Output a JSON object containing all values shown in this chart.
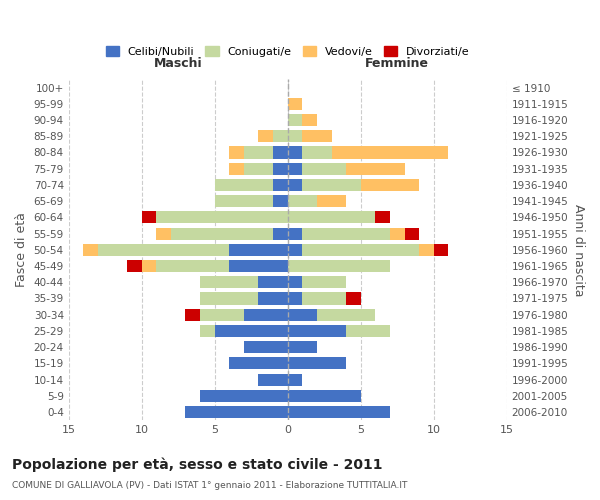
{
  "age_groups": [
    "0-4",
    "5-9",
    "10-14",
    "15-19",
    "20-24",
    "25-29",
    "30-34",
    "35-39",
    "40-44",
    "45-49",
    "50-54",
    "55-59",
    "60-64",
    "65-69",
    "70-74",
    "75-79",
    "80-84",
    "85-89",
    "90-94",
    "95-99",
    "100+"
  ],
  "birth_years": [
    "2006-2010",
    "2001-2005",
    "1996-2000",
    "1991-1995",
    "1986-1990",
    "1981-1985",
    "1976-1980",
    "1971-1975",
    "1966-1970",
    "1961-1965",
    "1956-1960",
    "1951-1955",
    "1946-1950",
    "1941-1945",
    "1936-1940",
    "1931-1935",
    "1926-1930",
    "1921-1925",
    "1916-1920",
    "1911-1915",
    "≤ 1910"
  ],
  "maschi": {
    "celibi": [
      7,
      6,
      2,
      4,
      3,
      5,
      3,
      2,
      2,
      4,
      4,
      1,
      0,
      1,
      1,
      1,
      1,
      0,
      0,
      0,
      0
    ],
    "coniugati": [
      0,
      0,
      0,
      0,
      0,
      1,
      3,
      4,
      4,
      5,
      9,
      7,
      9,
      4,
      4,
      2,
      2,
      1,
      0,
      0,
      0
    ],
    "vedovi": [
      0,
      0,
      0,
      0,
      0,
      0,
      0,
      0,
      0,
      1,
      1,
      1,
      0,
      0,
      0,
      1,
      1,
      1,
      0,
      0,
      0
    ],
    "divorziati": [
      0,
      0,
      0,
      0,
      0,
      0,
      1,
      0,
      0,
      1,
      0,
      0,
      1,
      0,
      0,
      0,
      0,
      0,
      0,
      0,
      0
    ]
  },
  "femmine": {
    "nubili": [
      7,
      5,
      1,
      4,
      2,
      4,
      2,
      1,
      1,
      0,
      1,
      1,
      0,
      0,
      1,
      1,
      1,
      0,
      0,
      0,
      0
    ],
    "coniugate": [
      0,
      0,
      0,
      0,
      0,
      3,
      4,
      3,
      3,
      7,
      8,
      6,
      6,
      2,
      4,
      3,
      2,
      1,
      1,
      0,
      0
    ],
    "vedove": [
      0,
      0,
      0,
      0,
      0,
      0,
      0,
      0,
      0,
      0,
      1,
      1,
      0,
      2,
      4,
      4,
      8,
      2,
      1,
      1,
      0
    ],
    "divorziate": [
      0,
      0,
      0,
      0,
      0,
      0,
      0,
      1,
      0,
      0,
      1,
      1,
      1,
      0,
      0,
      0,
      0,
      0,
      0,
      0,
      0
    ]
  },
  "colors": {
    "celibi_nubili": "#4472c4",
    "coniugati": "#c5d9a0",
    "vedovi": "#ffc063",
    "divorziati": "#cc0000"
  },
  "xlim": 15,
  "title": "Popolazione per età, sesso e stato civile - 2011",
  "subtitle": "COMUNE DI GALLIAVOLA (PV) - Dati ISTAT 1° gennaio 2011 - Elaborazione TUTTITALIA.IT",
  "ylabel_left": "Fasce di età",
  "ylabel_right": "Anni di nascita",
  "xlabel_maschi": "Maschi",
  "xlabel_femmine": "Femmine",
  "legend_labels": [
    "Celibi/Nubili",
    "Coniugati/e",
    "Vedovi/e",
    "Divorziati/e"
  ],
  "bg_color": "#ffffff",
  "grid_color": "#cccccc"
}
